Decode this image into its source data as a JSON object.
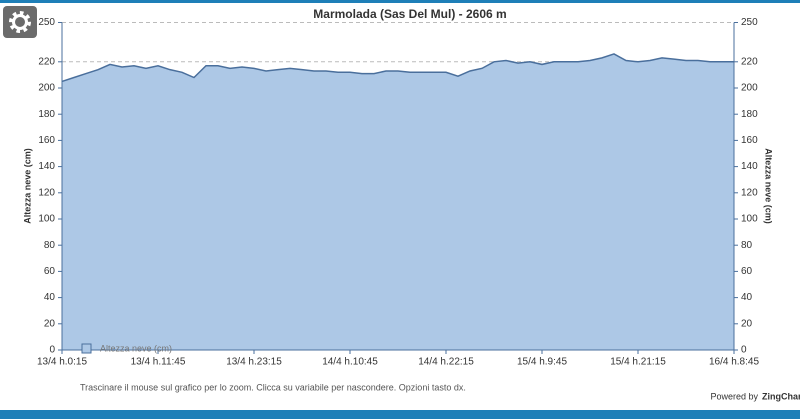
{
  "chart_data": {
    "type": "area",
    "title": "Marmolada (Sas Del Mul) - 2606 m",
    "y_label": "Altezza neve (cm)",
    "categories": [
      "13/4 h.0:15",
      null,
      null,
      null,
      null,
      null,
      null,
      null,
      "13/4 h.11:45",
      null,
      null,
      null,
      null,
      null,
      null,
      null,
      "13/4 h.23:15",
      null,
      null,
      null,
      null,
      null,
      null,
      null,
      "14/4 h.10:45",
      null,
      null,
      null,
      null,
      null,
      null,
      null,
      "14/4 h.22:15",
      null,
      null,
      null,
      null,
      null,
      null,
      null,
      "15/4 h.9:45",
      null,
      null,
      null,
      null,
      null,
      null,
      null,
      "15/4 h.21:15",
      null,
      null,
      null,
      null,
      null,
      null,
      null,
      "16/4 h.8:45"
    ],
    "series": [
      {
        "name": "Altezza neve (cm)",
        "color": "#4a6f9c",
        "fill": "#adc8e6",
        "values": [
          205,
          208,
          211,
          214,
          218,
          216,
          217,
          215,
          217,
          214,
          212,
          208,
          217,
          217,
          215,
          216,
          215,
          213,
          214,
          215,
          214,
          213,
          213,
          212,
          212,
          211,
          211,
          213,
          213,
          212,
          212,
          212,
          212,
          209,
          213,
          215,
          220,
          221,
          219,
          220,
          218,
          220,
          220,
          220,
          221,
          223,
          226,
          221,
          220,
          221,
          223,
          222,
          221,
          221,
          220,
          220,
          220
        ]
      }
    ],
    "ylim": [
      0,
      250
    ],
    "yticks": [
      0,
      20,
      40,
      60,
      80,
      100,
      120,
      140,
      160,
      180,
      200,
      220,
      250
    ],
    "grid": true
  },
  "footer": {
    "hint": "Trascinare il mouse sul grafico per lo zoom. Clicca su variabile per nascondere. Opzioni tasto dx.",
    "credit_prefix": "Powered by",
    "credit_brand": "ZingChart"
  }
}
